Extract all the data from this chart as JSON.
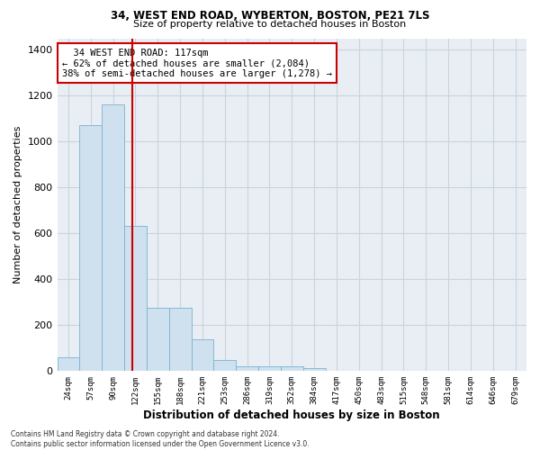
{
  "title_line1": "34, WEST END ROAD, WYBERTON, BOSTON, PE21 7LS",
  "title_line2": "Size of property relative to detached houses in Boston",
  "xlabel": "Distribution of detached houses by size in Boston",
  "ylabel": "Number of detached properties",
  "annotation_line1": "  34 WEST END ROAD: 117sqm  ",
  "annotation_line2": "← 62% of detached houses are smaller (2,084)",
  "annotation_line3": "38% of semi-detached houses are larger (1,278) →",
  "footer_line1": "Contains HM Land Registry data © Crown copyright and database right 2024.",
  "footer_line2": "Contains public sector information licensed under the Open Government Licence v3.0.",
  "bar_color": "#cfe0ee",
  "bar_edge_color": "#7ab3d3",
  "grid_color": "#c8d4de",
  "background_color": "#e8eef4",
  "vline_color": "#cc0000",
  "annotation_box_edge": "#cc0000",
  "categories": [
    "24sqm",
    "57sqm",
    "90sqm",
    "122sqm",
    "155sqm",
    "188sqm",
    "221sqm",
    "253sqm",
    "286sqm",
    "319sqm",
    "352sqm",
    "384sqm",
    "417sqm",
    "450sqm",
    "483sqm",
    "515sqm",
    "548sqm",
    "581sqm",
    "614sqm",
    "646sqm",
    "679sqm"
  ],
  "values": [
    60,
    1070,
    1160,
    630,
    275,
    275,
    135,
    45,
    20,
    20,
    20,
    10,
    0,
    0,
    0,
    0,
    0,
    0,
    0,
    0,
    0
  ],
  "vline_position": 2.85,
  "ylim": [
    0,
    1450
  ],
  "yticks": [
    0,
    200,
    400,
    600,
    800,
    1000,
    1200,
    1400
  ]
}
